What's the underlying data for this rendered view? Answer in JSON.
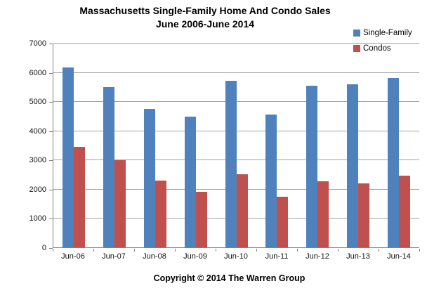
{
  "chart_data": {
    "type": "bar",
    "title_line1": "Massachusetts Single-Family Home And Condo Sales",
    "title_line2": "June 2006-June 2014",
    "categories": [
      "Jun-06",
      "Jun-07",
      "Jun-08",
      "Jun-09",
      "Jun-10",
      "Jun-11",
      "Jun-12",
      "Jun-13",
      "Jun-14"
    ],
    "series": [
      {
        "name": "Single-Family",
        "color": "#4F81BD",
        "values": [
          6150,
          5490,
          4730,
          4480,
          5690,
          4540,
          5540,
          5580,
          5790
        ]
      },
      {
        "name": "Condos",
        "color": "#C0504D",
        "values": [
          3450,
          2980,
          2280,
          1890,
          2490,
          1730,
          2260,
          2180,
          2450
        ]
      }
    ],
    "xlabel": "",
    "ylabel": "",
    "ylim": [
      0,
      7000
    ],
    "yticks": [
      0,
      1000,
      2000,
      3000,
      4000,
      5000,
      6000,
      7000
    ],
    "grid": true,
    "legend_position": "top-right"
  },
  "colors": {
    "single_family": "#4F81BD",
    "condos": "#C0504D",
    "gridline": "#a3a3a3",
    "axis": "#808080",
    "background": "#ffffff"
  },
  "footer": {
    "copyright": "Copyright © 2014 The Warren Group"
  }
}
